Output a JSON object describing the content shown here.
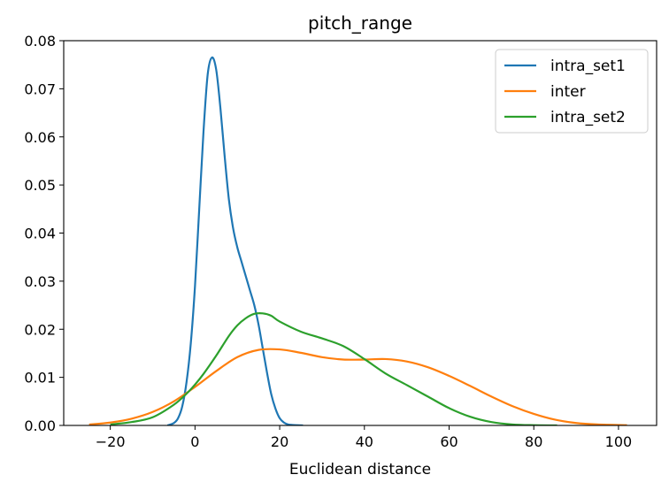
{
  "chart_data": {
    "type": "line",
    "title": "pitch_range",
    "xlabel": "Euclidean distance",
    "ylabel": "",
    "xlim": [
      -31,
      109
    ],
    "ylim": [
      0,
      0.08
    ],
    "xticks": [
      -20,
      0,
      20,
      40,
      60,
      80,
      100
    ],
    "xtick_labels": [
      "−20",
      "0",
      "20",
      "40",
      "60",
      "80",
      "100"
    ],
    "yticks": [
      0,
      0.01,
      0.02,
      0.03,
      0.04,
      0.05,
      0.06,
      0.07,
      0.08
    ],
    "ytick_labels": [
      "0.00",
      "0.01",
      "0.02",
      "0.03",
      "0.04",
      "0.05",
      "0.06",
      "0.07",
      "0.08"
    ],
    "grid": false,
    "legend": "top-right",
    "series": [
      {
        "name": "intra_set1",
        "color": "#1f77b4",
        "x": [
          -6.5,
          -5,
          -4,
          -3,
          -2,
          -1,
          0,
          1,
          2,
          3,
          4,
          5,
          6,
          7,
          8,
          9,
          10,
          11,
          12,
          13,
          14,
          15,
          16,
          17,
          18,
          19,
          20,
          21,
          22,
          23,
          24,
          25.5
        ],
        "y": [
          0.0,
          0.0005,
          0.0015,
          0.004,
          0.009,
          0.017,
          0.029,
          0.045,
          0.061,
          0.073,
          0.0765,
          0.074,
          0.066,
          0.056,
          0.047,
          0.041,
          0.037,
          0.034,
          0.031,
          0.028,
          0.025,
          0.021,
          0.016,
          0.011,
          0.0065,
          0.0035,
          0.0015,
          0.0006,
          0.0002,
          0.0001,
          5e-05,
          0.0
        ]
      },
      {
        "name": "inter",
        "color": "#ff7f0e",
        "x": [
          -25,
          -20,
          -15,
          -10,
          -5,
          0,
          5,
          10,
          15,
          20,
          25,
          30,
          35,
          40,
          45,
          50,
          55,
          60,
          65,
          70,
          75,
          80,
          85,
          90,
          95,
          102
        ],
        "y": [
          0.0002,
          0.0006,
          0.0014,
          0.0028,
          0.005,
          0.008,
          0.0113,
          0.0142,
          0.0157,
          0.0158,
          0.0151,
          0.0142,
          0.0137,
          0.0137,
          0.0138,
          0.0133,
          0.0121,
          0.0103,
          0.0082,
          0.006,
          0.004,
          0.0024,
          0.0012,
          0.0005,
          0.0002,
          5e-05
        ]
      },
      {
        "name": "intra_set2",
        "color": "#2ca02c",
        "x": [
          -20,
          -15,
          -10,
          -5,
          -2,
          0,
          2,
          5,
          8,
          10,
          12,
          14,
          16,
          18,
          20,
          25,
          30,
          35,
          40,
          45,
          50,
          55,
          60,
          65,
          70,
          75,
          80,
          85.5
        ],
        "y": [
          0.0002,
          0.0007,
          0.0017,
          0.0043,
          0.0066,
          0.0085,
          0.0107,
          0.0145,
          0.0186,
          0.0208,
          0.0223,
          0.0232,
          0.0233,
          0.0228,
          0.0216,
          0.0195,
          0.0181,
          0.0165,
          0.0138,
          0.0108,
          0.0084,
          0.006,
          0.0036,
          0.0018,
          0.0007,
          0.0002,
          5e-05,
          0.0
        ]
      }
    ]
  }
}
